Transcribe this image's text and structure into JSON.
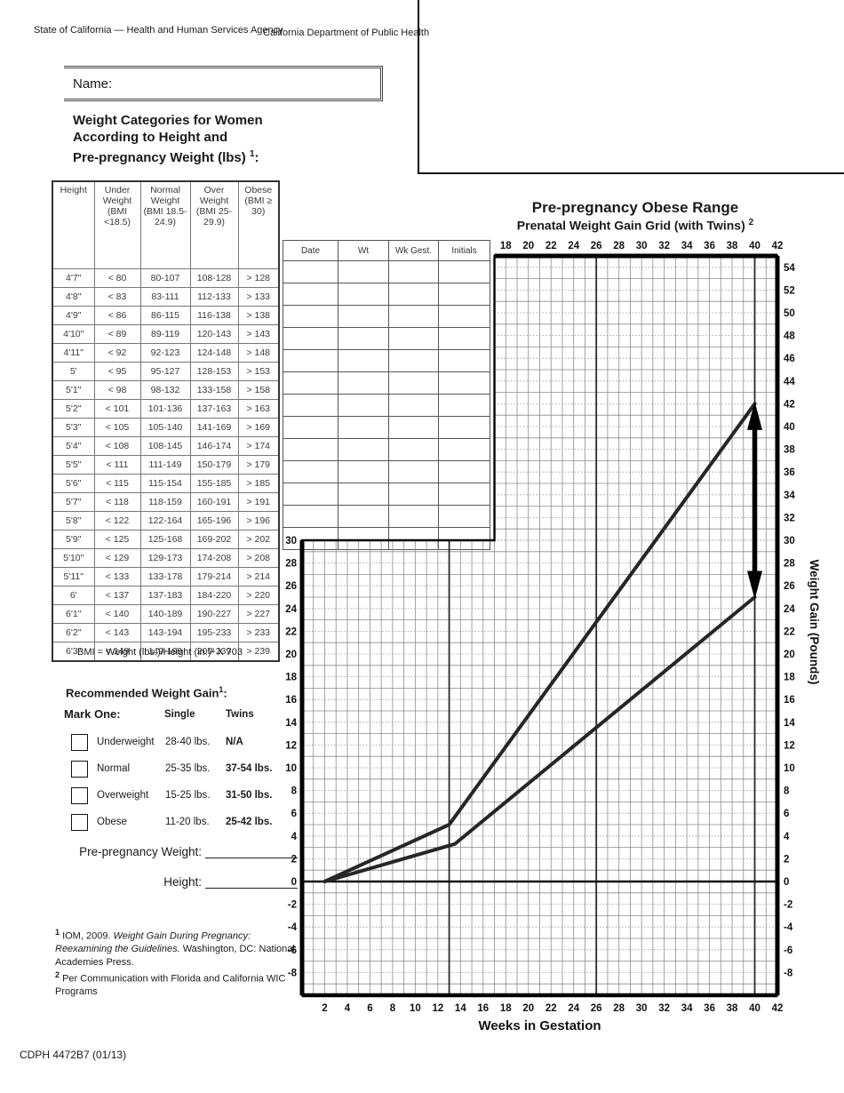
{
  "header": {
    "agency": "State of California — Health and Human Services Agency",
    "department": "California Department of Public Health"
  },
  "name_field": {
    "label": "Name:"
  },
  "weight_categories": {
    "lines": [
      "Weight Categories for Women",
      "According to Height and",
      "Pre-pregnancy Weight (lbs)"
    ],
    "sup": "1",
    "colon": ":"
  },
  "bmi_table": {
    "headers": [
      "Height",
      "Under Weight (BMI <18.5)",
      "Normal Weight (BMI 18.5-24.9)",
      "Over Weight (BMI 25-29.9)",
      "Obese (BMI ≥ 30)"
    ],
    "rows": [
      [
        "4'7\"",
        "< 80",
        "80-107",
        "108-128",
        "> 128"
      ],
      [
        "4'8\"",
        "< 83",
        "83-111",
        "112-133",
        "> 133"
      ],
      [
        "4'9\"",
        "< 86",
        "86-115",
        "116-138",
        "> 138"
      ],
      [
        "4'10\"",
        "< 89",
        "89-119",
        "120-143",
        "> 143"
      ],
      [
        "4'11\"",
        "< 92",
        "92-123",
        "124-148",
        "> 148"
      ],
      [
        "5'",
        "< 95",
        "95-127",
        "128-153",
        "> 153"
      ],
      [
        "5'1\"",
        "< 98",
        "98-132",
        "133-158",
        "> 158"
      ],
      [
        "5'2\"",
        "< 101",
        "101-136",
        "137-163",
        "> 163"
      ],
      [
        "5'3\"",
        "< 105",
        "105-140",
        "141-169",
        "> 169"
      ],
      [
        "5'4\"",
        "< 108",
        "108-145",
        "146-174",
        "> 174"
      ],
      [
        "5'5\"",
        "< 111",
        "111-149",
        "150-179",
        "> 179"
      ],
      [
        "5'6\"",
        "< 115",
        "115-154",
        "155-185",
        "> 185"
      ],
      [
        "5'7\"",
        "< 118",
        "118-159",
        "160-191",
        "> 191"
      ],
      [
        "5'8\"",
        "< 122",
        "122-164",
        "165-196",
        "> 196"
      ],
      [
        "5'9\"",
        "< 125",
        "125-168",
        "169-202",
        "> 202"
      ],
      [
        "5'10\"",
        "< 129",
        "129-173",
        "174-208",
        "> 208"
      ],
      [
        "5'11\"",
        "< 133",
        "133-178",
        "179-214",
        "> 214"
      ],
      [
        "6'",
        "< 137",
        "137-183",
        "184-220",
        "> 220"
      ],
      [
        "6'1\"",
        "< 140",
        "140-189",
        "190-227",
        "> 227"
      ],
      [
        "6'2\"",
        "< 143",
        "143-194",
        "195-233",
        "> 233"
      ],
      [
        "6'3\"",
        "< 149",
        "149-199",
        "200-239",
        "> 239"
      ]
    ]
  },
  "bmi_formula": "BMI = Weight (lbs.)/Height (in.)² X 703",
  "recommended": {
    "title": "Recommended Weight Gain",
    "title_sup": "1",
    "title_colon": ":",
    "mark_one": "Mark One:",
    "col_single": "Single",
    "col_twins": "Twins",
    "rows": [
      {
        "label": "Underweight",
        "single": "28-40 lbs.",
        "twins": "N/A"
      },
      {
        "label": "Normal",
        "single": "25-35 lbs.",
        "twins": "37-54 lbs."
      },
      {
        "label": "Overweight",
        "single": "15-25 lbs.",
        "twins": "31-50 lbs."
      },
      {
        "label": "Obese",
        "single": "11-20 lbs.",
        "twins": "25-42 lbs."
      }
    ]
  },
  "fields": {
    "weight_label": "Pre-pregnancy Weight:",
    "height_label": "Height:"
  },
  "footnotes": {
    "fn1_sup": "1",
    "fn1_pre": " IOM, 2009. ",
    "fn1_italic": "Weight Gain During Pregnancy: Reexamining the Guidelines.",
    "fn1_post": " Washington, DC: National Academies Press.",
    "fn2_sup": "2",
    "fn2_text": " Per Communication with Florida and California WIC Programs"
  },
  "footer": "CDPH 4472B7 (01/13)",
  "log_table": {
    "headers": [
      "Date",
      "Wt",
      "Wk Gest.",
      "Initials"
    ],
    "empty_rows": 13
  },
  "chart_data": {
    "type": "line",
    "title": "Pre-pregnancy Obese Range",
    "subtitle": "Prenatal Weight Gain Grid (with Twins)",
    "subtitle_sup": "2",
    "xlabel": "Weeks in Gestation",
    "ylabel": "Weight Gain (Pounds)",
    "x_range": [
      0,
      42
    ],
    "y_range": [
      -10,
      55
    ],
    "upper_panel": {
      "x_min": 17,
      "y_min": 30
    },
    "grid": "1-week by 1-pound squares, dotted rules on even pounds",
    "heavy_week_lines": [
      13,
      26,
      40
    ],
    "zero_line": 0,
    "top_ticks": [
      18,
      20,
      22,
      24,
      26,
      28,
      30,
      32,
      34,
      36,
      38,
      40,
      42
    ],
    "bottom_ticks": [
      2,
      4,
      6,
      8,
      10,
      12,
      14,
      16,
      18,
      20,
      22,
      24,
      26,
      28,
      30,
      32,
      34,
      36,
      38,
      40,
      42
    ],
    "left_ticks": [
      30,
      28,
      26,
      24,
      22,
      20,
      18,
      16,
      14,
      12,
      10,
      8,
      6,
      4,
      2,
      0,
      -2,
      -4,
      -6,
      -8
    ],
    "right_ticks": [
      54,
      52,
      50,
      48,
      46,
      44,
      42,
      40,
      38,
      36,
      34,
      32,
      30,
      28,
      26,
      24,
      22,
      20,
      18,
      16,
      14,
      12,
      10,
      8,
      6,
      4,
      2,
      0,
      -2,
      -4,
      -6,
      -8
    ],
    "series": [
      {
        "name": "upper-gain-line",
        "points": [
          [
            2,
            0
          ],
          [
            13,
            5
          ],
          [
            40,
            42
          ]
        ]
      },
      {
        "name": "lower-gain-line",
        "points": [
          [
            2,
            0
          ],
          [
            13.5,
            3.3
          ],
          [
            40,
            25
          ]
        ]
      }
    ],
    "arrow": {
      "week": 40,
      "from_lb": 25,
      "to_lb": 42
    }
  }
}
